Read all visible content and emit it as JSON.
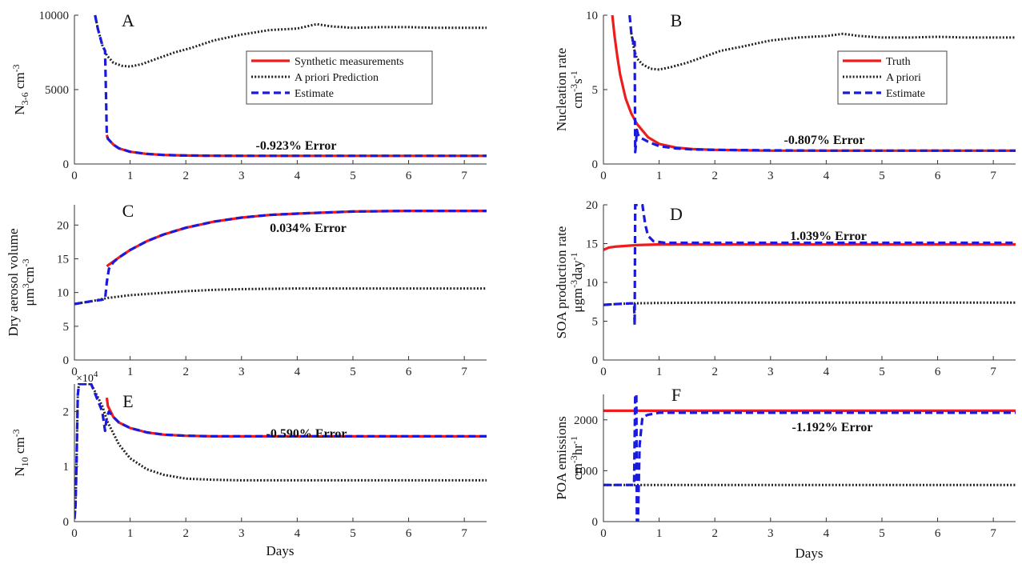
{
  "figure": {
    "xlabel": "Days"
  },
  "legend_entries": {
    "A": [
      "Synthetic measurements",
      "A priori Prediction",
      "Estimate"
    ],
    "B": [
      "Truth",
      "A priori",
      "Estimate"
    ]
  },
  "colors": {
    "truth": "#ee1c1c",
    "prior": "#222222",
    "estimate": "#1a1adc"
  },
  "chart_data": [
    {
      "panel": "A",
      "type": "line",
      "ylabel": "N",
      "ylabel_sub": "3-6",
      "ylabel_unit": " cm",
      "ylabel_sup": "-3",
      "annotation": "-0.923% Error",
      "xlim": [
        0,
        7.4
      ],
      "ylim": [
        0,
        10000
      ],
      "xticks": [
        0,
        1,
        2,
        3,
        4,
        5,
        6,
        7
      ],
      "yticks": [
        0,
        5000,
        10000
      ],
      "legend": "top-center",
      "series": [
        {
          "name": "Synthetic measurements",
          "role": "truth",
          "x": [
            0.58,
            0.6,
            0.7,
            0.8,
            1,
            1.3,
            1.6,
            2,
            2.5,
            3,
            4,
            5,
            6,
            7.4
          ],
          "y": [
            1950,
            1700,
            1300,
            1050,
            820,
            680,
            610,
            570,
            555,
            550,
            550,
            550,
            550,
            550
          ]
        },
        {
          "name": "A priori Prediction",
          "role": "prior",
          "x": [
            0.37,
            0.42,
            0.5,
            0.58,
            0.7,
            0.85,
            1,
            1.2,
            1.5,
            1.8,
            2.1,
            2.5,
            3,
            3.5,
            4,
            4.35,
            4.6,
            5,
            5.5,
            6,
            6.5,
            7,
            7.4
          ],
          "y": [
            10000,
            9100,
            8000,
            7300,
            6800,
            6600,
            6550,
            6700,
            7100,
            7500,
            7800,
            8300,
            8700,
            9000,
            9100,
            9400,
            9250,
            9150,
            9200,
            9200,
            9150,
            9150,
            9150
          ]
        },
        {
          "name": "Estimate",
          "role": "estimate",
          "x": [
            0.37,
            0.42,
            0.5,
            0.55,
            0.57,
            0.58,
            0.6,
            0.7,
            0.8,
            1,
            1.3,
            1.6,
            2,
            2.5,
            3,
            4,
            5,
            6,
            7.4
          ],
          "y": [
            10000,
            9100,
            8000,
            7600,
            4000,
            2000,
            1700,
            1300,
            1050,
            820,
            680,
            610,
            570,
            555,
            550,
            550,
            550,
            550,
            550
          ]
        }
      ]
    },
    {
      "panel": "B",
      "type": "line",
      "ylabel": "Nucleation rate",
      "ylabel_unit": "cm",
      "ylabel_sup": "-3",
      "ylabel_unit2": "s",
      "ylabel_sup2": "-1",
      "annotation": "-0.807% Error",
      "xlim": [
        0,
        7.4
      ],
      "ylim": [
        0,
        10
      ],
      "xticks": [
        0,
        1,
        2,
        3,
        4,
        5,
        6,
        7
      ],
      "yticks": [
        0,
        5,
        10
      ],
      "legend": "top-right",
      "series": [
        {
          "name": "Truth",
          "role": "truth",
          "x": [
            0.16,
            0.2,
            0.25,
            0.3,
            0.4,
            0.5,
            0.6,
            0.8,
            1,
            1.3,
            1.6,
            2,
            2.5,
            3,
            4,
            5,
            6,
            7.4
          ],
          "y": [
            10,
            8.6,
            7.2,
            6.0,
            4.4,
            3.4,
            2.7,
            1.8,
            1.35,
            1.1,
            1.0,
            0.95,
            0.92,
            0.9,
            0.9,
            0.9,
            0.9,
            0.9
          ]
        },
        {
          "name": "A priori",
          "role": "prior",
          "x": [
            0.5,
            0.55,
            0.6,
            0.7,
            0.85,
            1,
            1.2,
            1.5,
            1.8,
            2.1,
            2.5,
            3,
            3.5,
            4,
            4.3,
            4.6,
            5,
            5.5,
            6,
            6.5,
            7,
            7.4
          ],
          "y": [
            8.8,
            7.7,
            7.1,
            6.7,
            6.4,
            6.35,
            6.5,
            6.8,
            7.2,
            7.6,
            7.9,
            8.3,
            8.5,
            8.6,
            8.75,
            8.6,
            8.5,
            8.5,
            8.55,
            8.5,
            8.5,
            8.5
          ]
        },
        {
          "name": "Estimate",
          "role": "estimate",
          "x": [
            0.47,
            0.5,
            0.55,
            0.56,
            0.57,
            0.58,
            0.6,
            0.62,
            0.65,
            0.7,
            0.8,
            1,
            1.3,
            1.6,
            2,
            3,
            4,
            5,
            6,
            7.4
          ],
          "y": [
            10,
            8.8,
            7.9,
            8.2,
            0.8,
            1.2,
            2.3,
            2.0,
            1.8,
            1.7,
            1.5,
            1.2,
            1.05,
            0.98,
            0.95,
            0.92,
            0.9,
            0.9,
            0.9,
            0.9
          ]
        }
      ]
    },
    {
      "panel": "C",
      "type": "line",
      "ylabel": "Dry aerosol volume",
      "ylabel_unit": "μm",
      "ylabel_sup": "3",
      "ylabel_unit2": "cm",
      "ylabel_sup2": "-3",
      "annotation": "0.034% Error",
      "xlim": [
        0,
        7.4
      ],
      "ylim": [
        0,
        23
      ],
      "xticks": [
        0,
        1,
        2,
        3,
        4,
        5,
        6,
        7
      ],
      "yticks": [
        0,
        5,
        10,
        15,
        20
      ],
      "series": [
        {
          "name": "Synthetic measurements",
          "role": "truth",
          "x": [
            0.58,
            0.8,
            1,
            1.3,
            1.6,
            2,
            2.5,
            3,
            3.5,
            4,
            5,
            6,
            7.4
          ],
          "y": [
            13.9,
            15.2,
            16.3,
            17.6,
            18.6,
            19.6,
            20.5,
            21.1,
            21.5,
            21.7,
            22.0,
            22.1,
            22.1
          ]
        },
        {
          "name": "A priori Prediction",
          "role": "prior",
          "x": [
            0,
            0.3,
            0.6,
            1,
            1.5,
            2,
            2.5,
            3,
            4,
            5,
            6,
            7.4
          ],
          "y": [
            8.3,
            8.7,
            9.2,
            9.6,
            9.9,
            10.2,
            10.4,
            10.5,
            10.6,
            10.6,
            10.6,
            10.6
          ]
        },
        {
          "name": "Estimate",
          "role": "estimate",
          "x": [
            0,
            0.3,
            0.55,
            0.58,
            0.62,
            0.7,
            0.8,
            1,
            1.3,
            1.6,
            2,
            2.5,
            3,
            3.5,
            4,
            5,
            6,
            7.4
          ],
          "y": [
            8.3,
            8.7,
            9.0,
            11.5,
            13.5,
            14.5,
            15.2,
            16.3,
            17.6,
            18.6,
            19.6,
            20.5,
            21.1,
            21.5,
            21.7,
            22.0,
            22.1,
            22.1
          ]
        }
      ]
    },
    {
      "panel": "D",
      "type": "line",
      "ylabel": "SOA production rate",
      "ylabel_unit": "μgm",
      "ylabel_sup": "-3",
      "ylabel_unit2": "day",
      "ylabel_sup2": "-1",
      "annotation": "1.039% Error",
      "xlim": [
        0,
        7.4
      ],
      "ylim": [
        0,
        20
      ],
      "xticks": [
        0,
        1,
        2,
        3,
        4,
        5,
        6,
        7
      ],
      "yticks": [
        0,
        5,
        10,
        15,
        20
      ],
      "series": [
        {
          "name": "Truth",
          "role": "truth",
          "x": [
            0,
            0.1,
            0.2,
            0.4,
            0.6,
            1,
            2,
            3,
            4,
            5,
            6,
            7.4
          ],
          "y": [
            14.2,
            14.5,
            14.6,
            14.7,
            14.8,
            14.9,
            14.9,
            14.9,
            14.9,
            14.9,
            14.9,
            14.9
          ]
        },
        {
          "name": "A priori",
          "role": "prior",
          "x": [
            0,
            0.2,
            0.5,
            1,
            2,
            3,
            4,
            5,
            6,
            7.4
          ],
          "y": [
            7.1,
            7.2,
            7.3,
            7.35,
            7.4,
            7.4,
            7.4,
            7.4,
            7.4,
            7.4
          ]
        },
        {
          "name": "Estimate",
          "role": "estimate",
          "x": [
            0,
            0.2,
            0.5,
            0.55,
            0.56,
            0.57,
            0.58,
            0.6,
            0.65,
            0.7,
            0.75,
            0.8,
            0.9,
            1.1,
            1.5,
            2,
            3,
            4,
            5,
            6,
            7.4
          ],
          "y": [
            7.1,
            7.2,
            7.3,
            7.3,
            4.5,
            20,
            20,
            20,
            20,
            20,
            17.5,
            16,
            15.3,
            15.1,
            15.1,
            15.1,
            15.1,
            15.1,
            15.1,
            15.1,
            15.1
          ]
        }
      ]
    },
    {
      "panel": "E",
      "type": "line",
      "ylabel": "N",
      "ylabel_sub": "10",
      "ylabel_unit": " cm",
      "ylabel_sup": "-3",
      "annotation": "-0.590% Error",
      "exponent": "×10",
      "exponent_sup": "4",
      "xlim": [
        0,
        7.4
      ],
      "ylim": [
        0,
        2.5
      ],
      "xticks": [
        0,
        1,
        2,
        3,
        4,
        5,
        6,
        7
      ],
      "yticks": [
        0,
        1,
        2
      ],
      "ytick_labels": [
        "0",
        "1",
        "2"
      ],
      "series": [
        {
          "name": "Synthetic measurements",
          "role": "truth",
          "x": [
            0.58,
            0.6,
            0.7,
            0.8,
            1,
            1.3,
            1.6,
            2,
            2.5,
            3,
            4,
            5,
            6,
            7.4
          ],
          "y": [
            2.25,
            2.1,
            1.9,
            1.8,
            1.7,
            1.62,
            1.58,
            1.56,
            1.55,
            1.55,
            1.55,
            1.55,
            1.55,
            1.55
          ]
        },
        {
          "name": "A priori Prediction",
          "role": "prior",
          "x": [
            0,
            0.02,
            0.04,
            0.06,
            0.08,
            0.1,
            0.3,
            0.5,
            0.6,
            0.8,
            1,
            1.3,
            1.6,
            2,
            2.5,
            3,
            4,
            5,
            6,
            7.4
          ],
          "y": [
            0.05,
            0.3,
            1.2,
            2.3,
            2.5,
            2.5,
            2.5,
            2.1,
            1.8,
            1.4,
            1.15,
            0.95,
            0.85,
            0.78,
            0.76,
            0.75,
            0.75,
            0.75,
            0.75,
            0.75
          ]
        },
        {
          "name": "Estimate",
          "role": "estimate",
          "x": [
            0,
            0.02,
            0.04,
            0.06,
            0.08,
            0.1,
            0.3,
            0.5,
            0.55,
            0.58,
            0.62,
            0.7,
            0.8,
            1,
            1.3,
            1.6,
            2,
            2.5,
            3,
            4,
            5,
            6,
            7.4
          ],
          "y": [
            0.05,
            0.3,
            1.2,
            2.3,
            2.5,
            2.5,
            2.5,
            2.0,
            1.65,
            1.9,
            2.0,
            1.9,
            1.8,
            1.7,
            1.62,
            1.58,
            1.56,
            1.55,
            1.55,
            1.55,
            1.55,
            1.55,
            1.55
          ]
        }
      ]
    },
    {
      "panel": "F",
      "type": "line",
      "ylabel": "POA emissions",
      "ylabel_unit": "cm",
      "ylabel_sup": "-3",
      "ylabel_unit2": "hr",
      "ylabel_sup2": "-1",
      "annotation": "-1.192% Error",
      "xlim": [
        0,
        7.4
      ],
      "ylim": [
        0,
        2500
      ],
      "xticks": [
        0,
        1,
        2,
        3,
        4,
        5,
        6,
        7
      ],
      "yticks": [
        0,
        1000,
        2000
      ],
      "series": [
        {
          "name": "Truth",
          "role": "truth",
          "x": [
            0,
            7.4
          ],
          "y": [
            2180,
            2180
          ]
        },
        {
          "name": "A priori",
          "role": "prior",
          "x": [
            0,
            7.4
          ],
          "y": [
            720,
            720
          ]
        },
        {
          "name": "Estimate",
          "role": "estimate",
          "x": [
            0,
            0.55,
            0.57,
            0.59,
            0.6,
            0.62,
            0.65,
            0.7,
            0.8,
            1,
            1.5,
            2,
            3,
            4,
            5,
            6,
            7.4
          ],
          "y": [
            720,
            720,
            2500,
            2500,
            0,
            0,
            1500,
            2050,
            2100,
            2140,
            2140,
            2140,
            2140,
            2140,
            2140,
            2140,
            2140
          ]
        }
      ]
    }
  ]
}
